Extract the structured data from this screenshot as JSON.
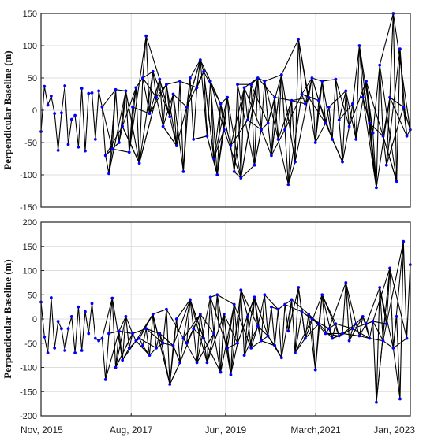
{
  "chart_data": [
    {
      "type": "line",
      "panel": "top",
      "title": "",
      "ylabel": "Perpendicular Baseline (m)",
      "xlabel": "",
      "ylim": [
        -150,
        150
      ],
      "yticks": [
        -150,
        -100,
        -50,
        0,
        50,
        100,
        150
      ],
      "xlim": [
        "2015-11-01",
        "2023-01-01"
      ],
      "grid": true,
      "series": [
        {
          "style": "network",
          "color": "#0000ff",
          "edge_color": "#000000",
          "acquisitions": [
            [
              "2015-11-01",
              -33
            ],
            [
              "2015-11-25",
              37
            ],
            [
              "2015-12-19",
              8
            ],
            [
              "2016-01-12",
              22
            ],
            [
              "2016-02-05",
              -5
            ],
            [
              "2016-03-01",
              -62
            ],
            [
              "2016-03-25",
              -4
            ],
            [
              "2016-04-18",
              38
            ],
            [
              "2016-05-12",
              -53
            ],
            [
              "2016-06-05",
              -14
            ],
            [
              "2016-06-29",
              -8
            ],
            [
              "2016-07-23",
              -57
            ],
            [
              "2016-08-16",
              34
            ],
            [
              "2016-09-09",
              -63
            ],
            [
              "2016-10-03",
              26
            ],
            [
              "2016-10-27",
              27
            ],
            [
              "2016-11-20",
              -45
            ],
            [
              "2016-12-14",
              30
            ],
            [
              "2017-01-07",
              5
            ],
            [
              "2017-01-31",
              -70
            ],
            [
              "2017-02-24",
              -98
            ],
            [
              "2017-03-20",
              -60
            ],
            [
              "2017-04-13",
              32
            ],
            [
              "2017-05-07",
              -50
            ],
            [
              "2017-05-31",
              -25
            ],
            [
              "2017-06-24",
              30
            ],
            [
              "2017-07-18",
              -65
            ],
            [
              "2017-08-11",
              5
            ],
            [
              "2017-09-04",
              35
            ],
            [
              "2017-09-28",
              -82
            ],
            [
              "2017-10-22",
              50
            ],
            [
              "2017-11-15",
              115
            ],
            [
              "2017-12-09",
              -5
            ],
            [
              "2018-01-02",
              60
            ],
            [
              "2018-01-26",
              20
            ],
            [
              "2018-02-19",
              48
            ],
            [
              "2018-03-15",
              -25
            ],
            [
              "2018-04-08",
              40
            ],
            [
              "2018-05-02",
              -10
            ],
            [
              "2018-05-26",
              25
            ],
            [
              "2018-06-19",
              -55
            ],
            [
              "2018-07-13",
              45
            ],
            [
              "2018-08-06",
              -95
            ],
            [
              "2018-08-30",
              5
            ],
            [
              "2018-09-23",
              50
            ],
            [
              "2018-10-17",
              -45
            ],
            [
              "2018-11-10",
              35
            ],
            [
              "2018-12-04",
              78
            ],
            [
              "2018-12-28",
              60
            ],
            [
              "2019-01-21",
              -40
            ],
            [
              "2019-02-14",
              45
            ],
            [
              "2019-03-10",
              -75
            ],
            [
              "2019-04-03",
              -100
            ],
            [
              "2019-04-27",
              10
            ],
            [
              "2019-05-21",
              -30
            ],
            [
              "2019-06-14",
              20
            ],
            [
              "2019-07-08",
              -55
            ],
            [
              "2019-08-01",
              -95
            ],
            [
              "2019-08-25",
              40
            ],
            [
              "2019-09-18",
              -105
            ],
            [
              "2019-10-12",
              35
            ],
            [
              "2019-11-05",
              -15
            ],
            [
              "2019-11-29",
              40
            ],
            [
              "2019-12-23",
              -85
            ],
            [
              "2020-01-16",
              50
            ],
            [
              "2020-02-09",
              -30
            ],
            [
              "2020-03-04",
              45
            ],
            [
              "2020-03-28",
              -20
            ],
            [
              "2020-04-21",
              -70
            ],
            [
              "2020-05-15",
              20
            ],
            [
              "2020-06-08",
              -45
            ],
            [
              "2020-07-02",
              55
            ],
            [
              "2020-07-26",
              -30
            ],
            [
              "2020-08-19",
              -115
            ],
            [
              "2020-09-12",
              15
            ],
            [
              "2020-10-06",
              -80
            ],
            [
              "2020-10-30",
              110
            ],
            [
              "2020-11-23",
              25
            ],
            [
              "2020-12-17",
              10
            ],
            [
              "2021-01-10",
              20
            ],
            [
              "2021-02-03",
              50
            ],
            [
              "2021-02-27",
              -50
            ],
            [
              "2021-03-23",
              15
            ],
            [
              "2021-04-16",
              45
            ],
            [
              "2021-05-10",
              -20
            ],
            [
              "2021-06-03",
              5
            ],
            [
              "2021-06-27",
              -45
            ],
            [
              "2021-07-21",
              48
            ],
            [
              "2021-08-14",
              -15
            ],
            [
              "2021-09-07",
              -80
            ],
            [
              "2021-10-01",
              30
            ],
            [
              "2021-10-25",
              -25
            ],
            [
              "2021-11-18",
              10
            ],
            [
              "2021-12-12",
              -45
            ],
            [
              "2022-01-05",
              100
            ],
            [
              "2022-01-29",
              20
            ],
            [
              "2022-02-22",
              45
            ],
            [
              "2022-03-18",
              -20
            ],
            [
              "2022-04-11",
              -35
            ],
            [
              "2022-05-05",
              -120
            ],
            [
              "2022-05-29",
              70
            ],
            [
              "2022-06-22",
              -40
            ],
            [
              "2022-07-16",
              -85
            ],
            [
              "2022-08-09",
              20
            ],
            [
              "2022-09-02",
              150
            ],
            [
              "2022-09-26",
              -110
            ],
            [
              "2022-10-20",
              95
            ],
            [
              "2022-11-13",
              5
            ],
            [
              "2022-12-07",
              -40
            ],
            [
              "2022-12-31",
              -30
            ]
          ]
        }
      ]
    },
    {
      "type": "line",
      "panel": "bottom",
      "title": "",
      "ylabel": "Perpendicular Baseline (m)",
      "xlabel": "",
      "ylim": [
        -200,
        200
      ],
      "yticks": [
        -200,
        -150,
        -100,
        -50,
        0,
        50,
        100,
        150,
        200
      ],
      "xlim": [
        "2015-11-01",
        "2023-01-01"
      ],
      "xticks": [
        "Nov, 2015",
        "Aug, 2017",
        "Jun, 2019",
        "March,2021",
        "Jan, 2023"
      ],
      "grid": true,
      "series": [
        {
          "style": "network",
          "color": "#0000ff",
          "edge_color": "#000000",
          "acquisitions": [
            [
              "2015-11-01",
              35
            ],
            [
              "2015-11-25",
              -37
            ],
            [
              "2015-12-19",
              -70
            ],
            [
              "2016-01-12",
              44
            ],
            [
              "2016-02-05",
              -60
            ],
            [
              "2016-03-01",
              -5
            ],
            [
              "2016-03-25",
              -20
            ],
            [
              "2016-04-18",
              -65
            ],
            [
              "2016-05-12",
              -20
            ],
            [
              "2016-06-05",
              5
            ],
            [
              "2016-06-29",
              -70
            ],
            [
              "2016-07-23",
              25
            ],
            [
              "2016-08-16",
              -65
            ],
            [
              "2016-09-09",
              15
            ],
            [
              "2016-10-03",
              -30
            ],
            [
              "2016-10-27",
              32
            ],
            [
              "2016-11-20",
              -40
            ],
            [
              "2016-12-14",
              -45
            ],
            [
              "2017-01-07",
              -40
            ],
            [
              "2017-01-31",
              -125
            ],
            [
              "2017-02-24",
              -30
            ],
            [
              "2017-03-20",
              43
            ],
            [
              "2017-04-13",
              -100
            ],
            [
              "2017-05-07",
              -25
            ],
            [
              "2017-05-31",
              -85
            ],
            [
              "2017-06-24",
              5
            ],
            [
              "2017-07-18",
              -60
            ],
            [
              "2017-08-11",
              -30
            ],
            [
              "2017-09-04",
              -45
            ],
            [
              "2017-09-28",
              -40
            ],
            [
              "2017-10-22",
              -55
            ],
            [
              "2017-11-15",
              -20
            ],
            [
              "2017-12-09",
              -75
            ],
            [
              "2018-01-02",
              10
            ],
            [
              "2018-01-26",
              -60
            ],
            [
              "2018-02-19",
              -30
            ],
            [
              "2018-03-15",
              -50
            ],
            [
              "2018-04-08",
              20
            ],
            [
              "2018-05-02",
              -135
            ],
            [
              "2018-05-26",
              -55
            ],
            [
              "2018-06-19",
              0
            ],
            [
              "2018-07-13",
              -90
            ],
            [
              "2018-08-06",
              -40
            ],
            [
              "2018-08-30",
              -50
            ],
            [
              "2018-09-23",
              40
            ],
            [
              "2018-10-17",
              -20
            ],
            [
              "2018-11-10",
              -90
            ],
            [
              "2018-12-04",
              10
            ],
            [
              "2018-12-28",
              -40
            ],
            [
              "2019-01-21",
              -90
            ],
            [
              "2019-02-14",
              45
            ],
            [
              "2019-03-10",
              -30
            ],
            [
              "2019-04-03",
              50
            ],
            [
              "2019-04-27",
              -110
            ],
            [
              "2019-05-21",
              10
            ],
            [
              "2019-06-14",
              -60
            ],
            [
              "2019-07-08",
              -115
            ],
            [
              "2019-08-01",
              30
            ],
            [
              "2019-08-25",
              -50
            ],
            [
              "2019-09-18",
              60
            ],
            [
              "2019-10-12",
              -75
            ],
            [
              "2019-11-05",
              5
            ],
            [
              "2019-11-29",
              -60
            ],
            [
              "2019-12-23",
              45
            ],
            [
              "2020-01-16",
              -15
            ],
            [
              "2020-02-09",
              -45
            ],
            [
              "2020-03-04",
              50
            ],
            [
              "2020-03-28",
              -35
            ],
            [
              "2020-04-21",
              25
            ],
            [
              "2020-05-15",
              -55
            ],
            [
              "2020-06-08",
              20
            ],
            [
              "2020-07-02",
              -80
            ],
            [
              "2020-07-26",
              30
            ],
            [
              "2020-08-19",
              -25
            ],
            [
              "2020-09-12",
              40
            ],
            [
              "2020-10-06",
              -70
            ],
            [
              "2020-10-30",
              65
            ],
            [
              "2020-11-23",
              15
            ],
            [
              "2020-12-17",
              -40
            ],
            [
              "2021-01-10",
              10
            ],
            [
              "2021-02-03",
              0
            ],
            [
              "2021-02-27",
              -105
            ],
            [
              "2021-03-23",
              -10
            ],
            [
              "2021-04-16",
              50
            ],
            [
              "2021-05-10",
              -30
            ],
            [
              "2021-06-03",
              -20
            ],
            [
              "2021-06-27",
              -40
            ],
            [
              "2021-07-21",
              -10
            ],
            [
              "2021-08-14",
              -35
            ],
            [
              "2021-09-07",
              -30
            ],
            [
              "2021-10-01",
              75
            ],
            [
              "2021-10-25",
              -45
            ],
            [
              "2021-11-18",
              -20
            ],
            [
              "2021-12-12",
              -10
            ],
            [
              "2022-01-05",
              -35
            ],
            [
              "2022-01-29",
              5
            ],
            [
              "2022-02-22",
              -10
            ],
            [
              "2022-03-18",
              -40
            ],
            [
              "2022-04-11",
              -5
            ],
            [
              "2022-05-05",
              -172
            ],
            [
              "2022-05-29",
              65
            ],
            [
              "2022-06-22",
              -45
            ],
            [
              "2022-07-16",
              -10
            ],
            [
              "2022-08-09",
              105
            ],
            [
              "2022-09-02",
              -60
            ],
            [
              "2022-09-26",
              5
            ],
            [
              "2022-10-20",
              -165
            ],
            [
              "2022-11-13",
              160
            ],
            [
              "2022-12-07",
              -40
            ],
            [
              "2022-12-31",
              112
            ]
          ]
        }
      ]
    }
  ]
}
